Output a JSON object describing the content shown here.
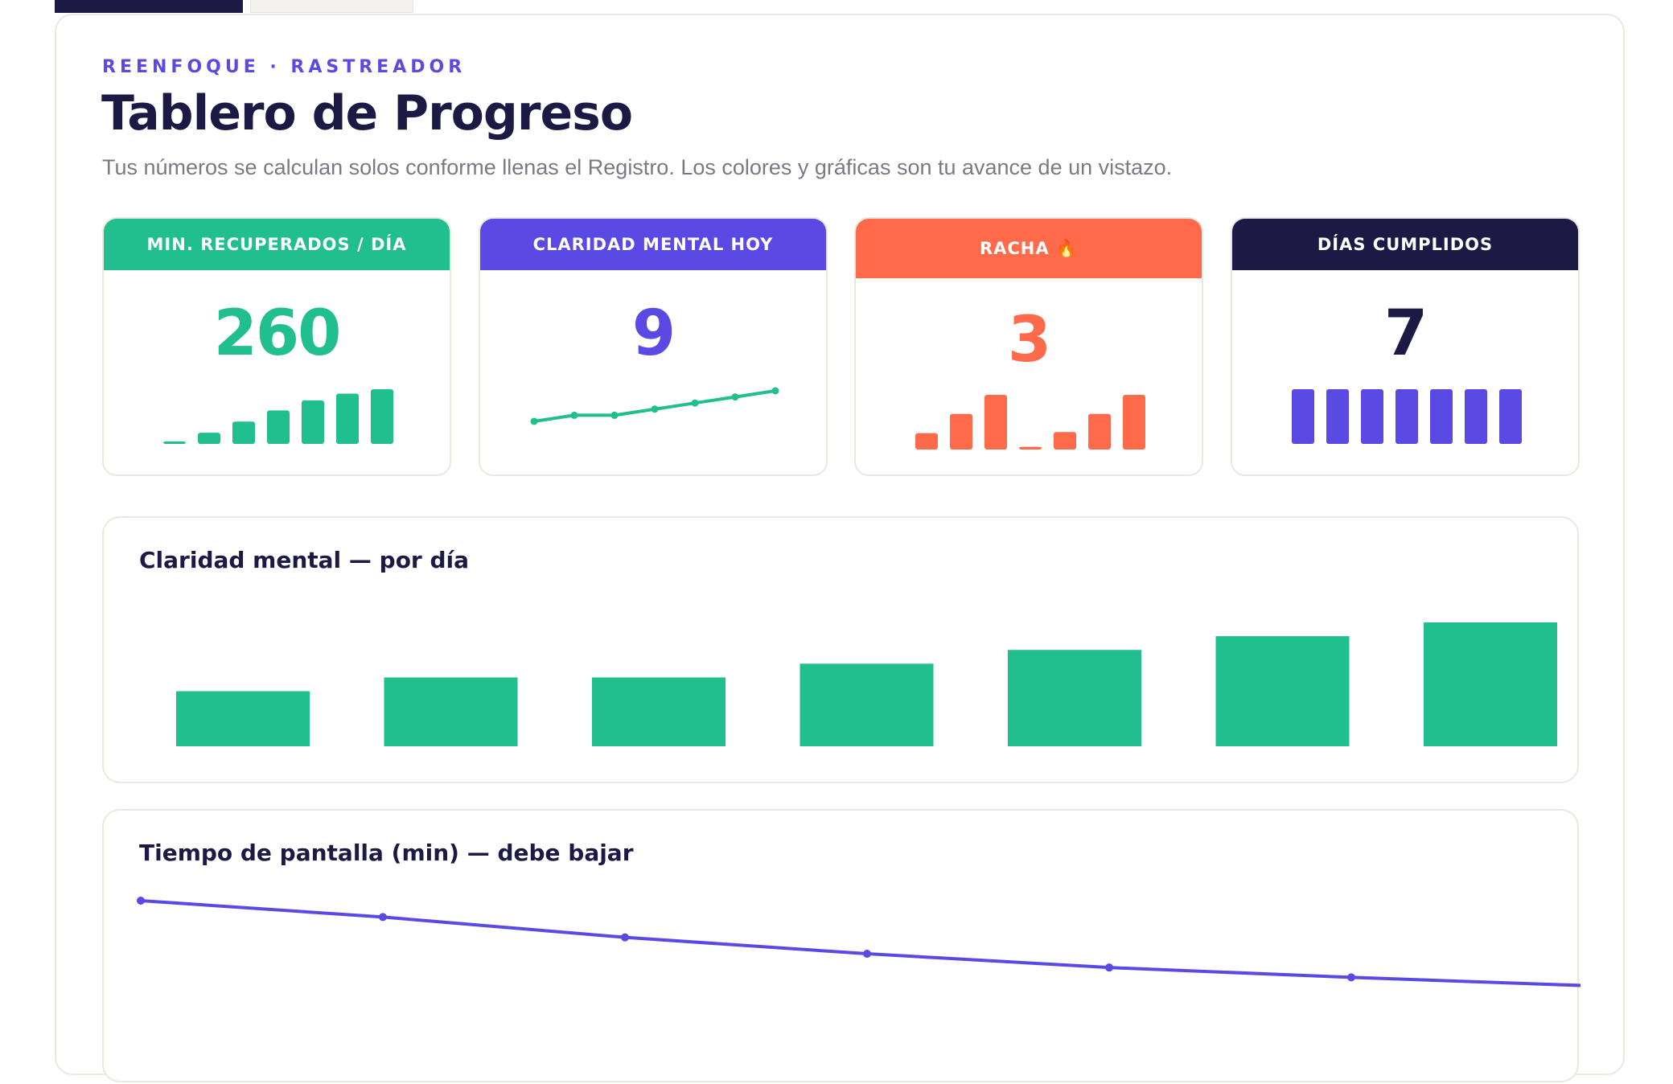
{
  "header": {
    "eyebrow": "REENFOQUE · RASTREADOR",
    "title": "Tablero de Progreso",
    "subtitle": "Tus números se calculan solos conforme llenas el Registro. Los colores y gráficas son tu avance de un vistazo."
  },
  "colors": {
    "green": "#21bf8d",
    "purple": "#5a4ae3",
    "coral": "#ff6b4a",
    "navy": "#1c1a45"
  },
  "cards": [
    {
      "label": "MIN. RECUPERADOS / DÍA",
      "value": "260",
      "spark_type": "bar",
      "spark": [
        2,
        20,
        40,
        60,
        78,
        90,
        98
      ]
    },
    {
      "label": "CLARIDAD MENTAL HOY",
      "value": "9",
      "spark_type": "line",
      "spark": [
        4,
        5,
        5,
        6,
        7,
        8,
        9
      ]
    },
    {
      "label": "RACHA 🔥",
      "value": "3",
      "spark_type": "bar",
      "spark": [
        30,
        65,
        100,
        5,
        32,
        65,
        100
      ]
    },
    {
      "label": "DÍAS CUMPLIDOS",
      "value": "7",
      "spark_type": "bar",
      "spark": [
        1,
        1,
        1,
        1,
        1,
        1,
        1
      ]
    }
  ],
  "chart_data": [
    {
      "type": "bar",
      "title": "Claridad mental — por día",
      "values": [
        4,
        5,
        5,
        6,
        7,
        8,
        9
      ],
      "ylim": [
        0,
        9
      ],
      "color": "#21bf8d"
    },
    {
      "type": "line",
      "title": "Tiempo de pantalla (min) — debe bajar",
      "values": [
        480,
        455,
        424,
        399,
        378,
        363,
        350
      ],
      "color": "#5a4ae3"
    }
  ]
}
